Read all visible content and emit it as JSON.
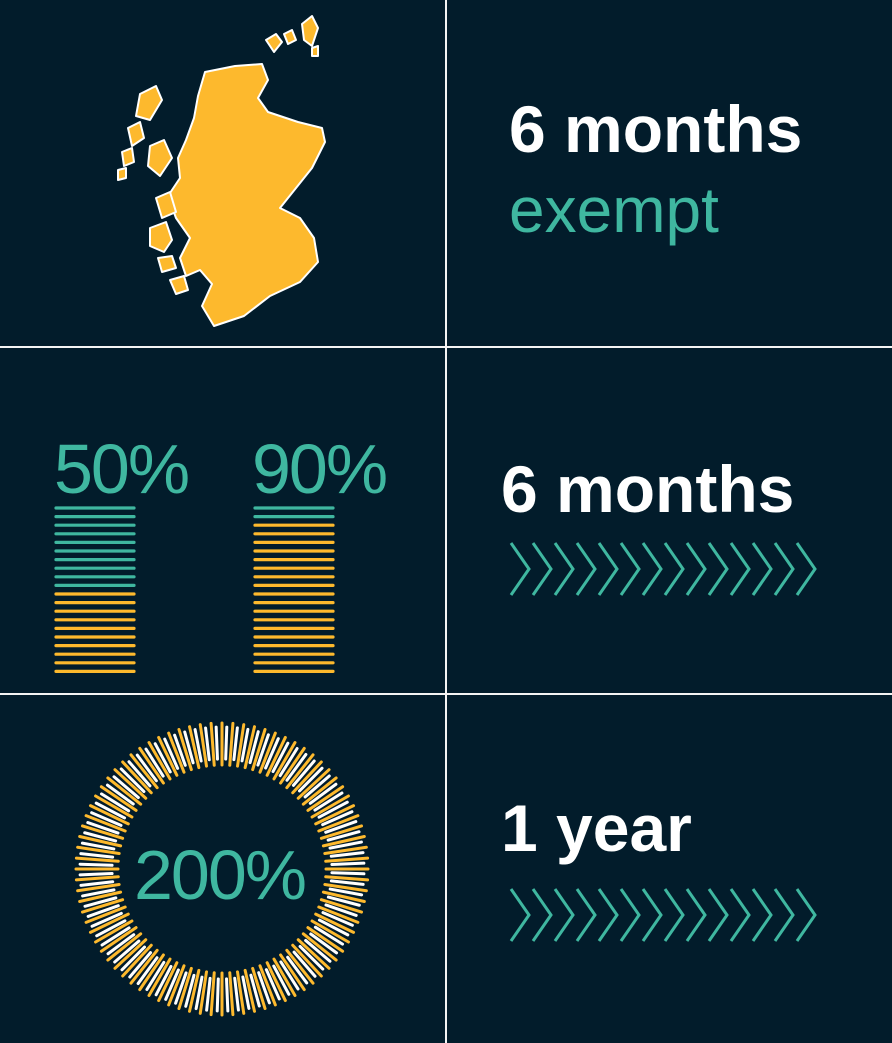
{
  "colors": {
    "background": "#021c2b",
    "divider": "#f4f4f4",
    "accent_teal": "#3fb7a0",
    "accent_yellow": "#fdb92d",
    "white": "#ffffff"
  },
  "panel_exempt": {
    "icon": "scotland-map-icon",
    "duration": "6 months",
    "status": "exempt"
  },
  "panel_bars": {
    "left_percent": "50%",
    "left_fill_fraction": 0.5,
    "right_percent": "90%",
    "right_fill_fraction": 0.9,
    "duration": "6 months",
    "icon": "chevrons-right-icon"
  },
  "panel_circle": {
    "percent": "200%",
    "icon": "radial-burst-icon",
    "duration": "1 year",
    "arrow_icon": "chevrons-right-icon"
  }
}
